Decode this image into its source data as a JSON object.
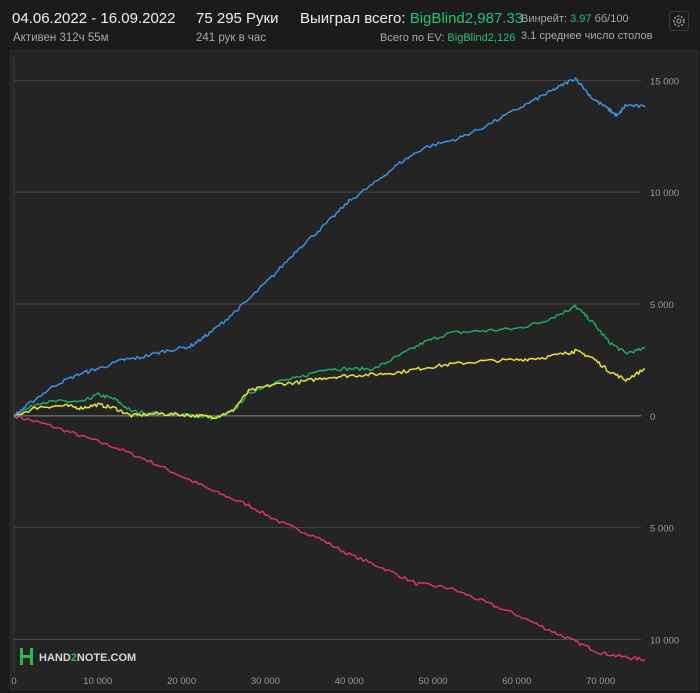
{
  "header": {
    "date_range": "04.06.2022 - 16.09.2022",
    "active": "Активен 312ч 55м",
    "hands": "75 295 Руки",
    "hands_per_hour": "241 рук в час",
    "won_label": "Выиграл всего:",
    "won_value": "BigBlind2,987.33",
    "ev_label": "Всего по EV:",
    "ev_value": "BigBlind2,126",
    "winrate_label": "Винрейт:",
    "winrate_value": "3.97",
    "winrate_unit": "бб/100",
    "tables": "3.1 среднее число столов"
  },
  "logo": {
    "text_hand": "HAND",
    "text_2": "2",
    "text_note": "NOTE.COM"
  },
  "colors": {
    "blue": "#3d8fe0",
    "green": "#1fa85f",
    "yellow": "#e8e23a",
    "pink": "#d8336b"
  },
  "chart_data": {
    "type": "line",
    "xlim": [
      0,
      75295
    ],
    "ylim": [
      -11500,
      16000
    ],
    "x_ticks": [
      0,
      10000,
      20000,
      30000,
      40000,
      50000,
      60000,
      70000
    ],
    "x_tick_labels": [
      "0",
      "10 000",
      "20 000",
      "30 000",
      "40 000",
      "50 000",
      "60 000",
      "70 000"
    ],
    "y_ticks": [
      15000,
      10000,
      5000,
      0,
      -5000,
      -10000
    ],
    "y_tick_labels": [
      "15 000",
      "10 000",
      "5 000",
      "0",
      "5 000",
      "10 000"
    ],
    "series": [
      {
        "color": "#3d8fe0",
        "points": [
          [
            0,
            0
          ],
          [
            2000,
            600
          ],
          [
            5000,
            1400
          ],
          [
            8000,
            1900
          ],
          [
            10000,
            2100
          ],
          [
            13000,
            2500
          ],
          [
            15000,
            2600
          ],
          [
            18000,
            2900
          ],
          [
            21000,
            3100
          ],
          [
            23000,
            3600
          ],
          [
            25000,
            4200
          ],
          [
            28000,
            5200
          ],
          [
            31000,
            6300
          ],
          [
            34000,
            7500
          ],
          [
            37000,
            8500
          ],
          [
            40000,
            9600
          ],
          [
            43000,
            10400
          ],
          [
            46000,
            11300
          ],
          [
            49000,
            12000
          ],
          [
            53000,
            12400
          ],
          [
            56000,
            12900
          ],
          [
            60000,
            13700
          ],
          [
            63000,
            14300
          ],
          [
            65000,
            14700
          ],
          [
            67000,
            15100
          ],
          [
            69000,
            14200
          ],
          [
            71000,
            13700
          ],
          [
            72000,
            13400
          ],
          [
            73000,
            13900
          ],
          [
            75295,
            13800
          ]
        ]
      },
      {
        "color": "#1fa85f",
        "points": [
          [
            0,
            0
          ],
          [
            3000,
            600
          ],
          [
            6000,
            650
          ],
          [
            8000,
            600
          ],
          [
            10000,
            950
          ],
          [
            12000,
            750
          ],
          [
            14000,
            200
          ],
          [
            17000,
            100
          ],
          [
            20000,
            50
          ],
          [
            22000,
            0
          ],
          [
            24000,
            -100
          ],
          [
            26000,
            150
          ],
          [
            28000,
            1000
          ],
          [
            31000,
            1500
          ],
          [
            34000,
            1700
          ],
          [
            37000,
            2100
          ],
          [
            40000,
            2100
          ],
          [
            43000,
            2100
          ],
          [
            46000,
            2700
          ],
          [
            49000,
            3300
          ],
          [
            52000,
            3700
          ],
          [
            56000,
            3800
          ],
          [
            60000,
            3900
          ],
          [
            63000,
            4200
          ],
          [
            66000,
            4700
          ],
          [
            67000,
            4900
          ],
          [
            69000,
            4200
          ],
          [
            71000,
            3300
          ],
          [
            73000,
            2800
          ],
          [
            75295,
            3000
          ]
        ]
      },
      {
        "color": "#e8e23a",
        "points": [
          [
            0,
            0
          ],
          [
            3000,
            400
          ],
          [
            6000,
            450
          ],
          [
            8000,
            350
          ],
          [
            10000,
            500
          ],
          [
            12000,
            350
          ],
          [
            14000,
            0
          ],
          [
            17000,
            100
          ],
          [
            20000,
            50
          ],
          [
            22000,
            0
          ],
          [
            24000,
            -50
          ],
          [
            26000,
            200
          ],
          [
            28000,
            1100
          ],
          [
            31000,
            1400
          ],
          [
            34000,
            1500
          ],
          [
            37000,
            1700
          ],
          [
            40000,
            1800
          ],
          [
            43000,
            1850
          ],
          [
            46000,
            1950
          ],
          [
            49000,
            2150
          ],
          [
            52000,
            2300
          ],
          [
            56000,
            2450
          ],
          [
            60000,
            2500
          ],
          [
            63000,
            2600
          ],
          [
            66000,
            2800
          ],
          [
            67000,
            2900
          ],
          [
            69000,
            2600
          ],
          [
            71000,
            2000
          ],
          [
            73000,
            1600
          ],
          [
            75295,
            2100
          ]
        ]
      },
      {
        "color": "#d8336b",
        "points": [
          [
            0,
            0
          ],
          [
            4000,
            -400
          ],
          [
            8000,
            -900
          ],
          [
            12000,
            -1400
          ],
          [
            16000,
            -2000
          ],
          [
            20000,
            -2700
          ],
          [
            24000,
            -3400
          ],
          [
            28000,
            -4000
          ],
          [
            32000,
            -4800
          ],
          [
            36000,
            -5400
          ],
          [
            40000,
            -6200
          ],
          [
            44000,
            -6800
          ],
          [
            48000,
            -7500
          ],
          [
            52000,
            -7700
          ],
          [
            56000,
            -8300
          ],
          [
            60000,
            -8900
          ],
          [
            64000,
            -9600
          ],
          [
            67000,
            -10100
          ],
          [
            70000,
            -10600
          ],
          [
            73000,
            -10800
          ],
          [
            75295,
            -10900
          ]
        ]
      }
    ]
  }
}
